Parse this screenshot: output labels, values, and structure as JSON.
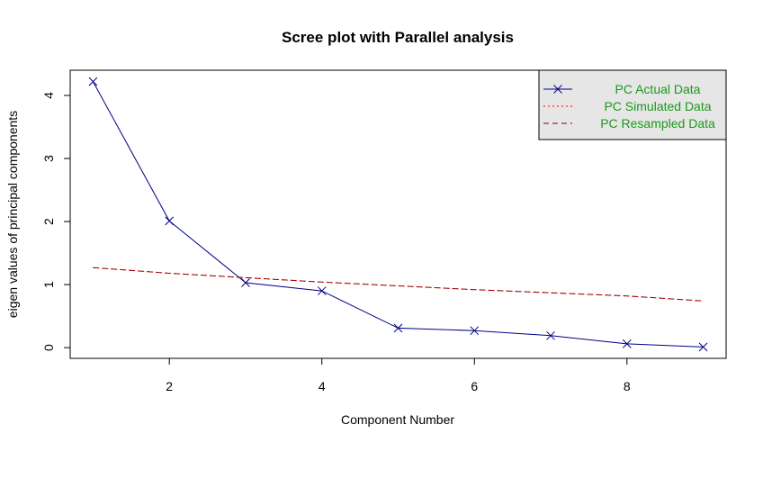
{
  "chart_data": {
    "type": "line",
    "title": "Scree plot with Parallel analysis",
    "xlabel": "Component Number",
    "ylabel": "eigen values of principal components",
    "xlim": [
      0.7,
      9.3
    ],
    "ylim": [
      -0.17,
      4.4
    ],
    "x_ticks": [
      2,
      4,
      6,
      8
    ],
    "y_ticks": [
      0,
      1,
      2,
      3,
      4
    ],
    "grid": false,
    "legend_position": "top-right",
    "x": [
      1,
      2,
      3,
      4,
      5,
      6,
      7,
      8,
      9
    ],
    "series": [
      {
        "name": "PC  Actual Data",
        "values": [
          4.22,
          2.01,
          1.03,
          0.9,
          0.31,
          0.27,
          0.19,
          0.06,
          0.01
        ],
        "color": "#00008b",
        "style": "solid",
        "marker": "x"
      },
      {
        "name": "PC  Simulated Data",
        "values": [
          1.27,
          1.18,
          1.11,
          1.04,
          0.98,
          0.92,
          0.87,
          0.82,
          0.74
        ],
        "color": "#ff0000",
        "style": "dotted",
        "marker": "none"
      },
      {
        "name": "PC  Resampled Data",
        "values": [
          1.27,
          1.18,
          1.11,
          1.04,
          0.98,
          0.92,
          0.87,
          0.82,
          0.74
        ],
        "color": "#8b0000",
        "style": "dashed",
        "marker": "none"
      }
    ]
  }
}
